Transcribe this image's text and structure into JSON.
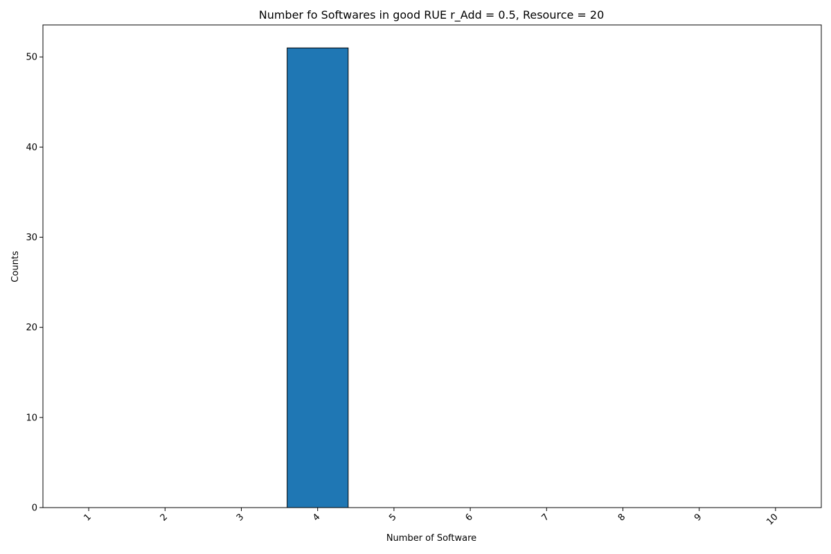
{
  "chart_data": {
    "type": "bar",
    "title": "Number fo Softwares in good RUE r_Add = 0.5, Resource = 20",
    "xlabel": "Number of Software",
    "ylabel": "Counts",
    "categories": [
      "1",
      "2",
      "3",
      "4",
      "5",
      "6",
      "7",
      "8",
      "9",
      "10"
    ],
    "values": [
      0,
      0,
      0,
      51,
      0,
      0,
      0,
      0,
      0,
      0
    ],
    "ylim": [
      0,
      53.55
    ],
    "yticks": [
      "0",
      "10",
      "20",
      "30",
      "40",
      "50"
    ],
    "grid": false,
    "bar_color": "#1f77b4",
    "edge_color": "#000000"
  }
}
